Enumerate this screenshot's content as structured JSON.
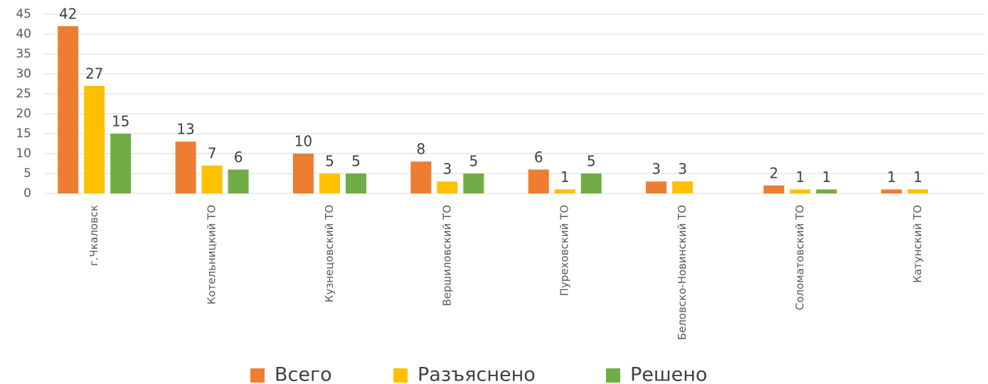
{
  "chart_data": {
    "type": "bar",
    "categories": [
      "г.Чкаловск",
      "Котельницкий ТО",
      "Кузнецовский ТО",
      "Вершиловский ТО",
      "Пуреховский ТО",
      "Беловско-Новинский ТО",
      "Соломатовский ТО",
      "Катунский ТО"
    ],
    "series": [
      {
        "name": "Всего",
        "color": "#ed7d31",
        "values": [
          42,
          13,
          10,
          8,
          6,
          3,
          2,
          1
        ]
      },
      {
        "name": "Разъяснено",
        "color": "#ffc000",
        "values": [
          27,
          7,
          5,
          3,
          1,
          3,
          1,
          1
        ]
      },
      {
        "name": "Решено",
        "color": "#70ad47",
        "values": [
          15,
          6,
          5,
          5,
          5,
          null,
          1,
          null
        ]
      }
    ],
    "ylim": [
      0,
      45
    ],
    "yticks": [
      0,
      5,
      10,
      15,
      20,
      25,
      30,
      35,
      40,
      45
    ],
    "grid": true,
    "legend": "bottom"
  }
}
